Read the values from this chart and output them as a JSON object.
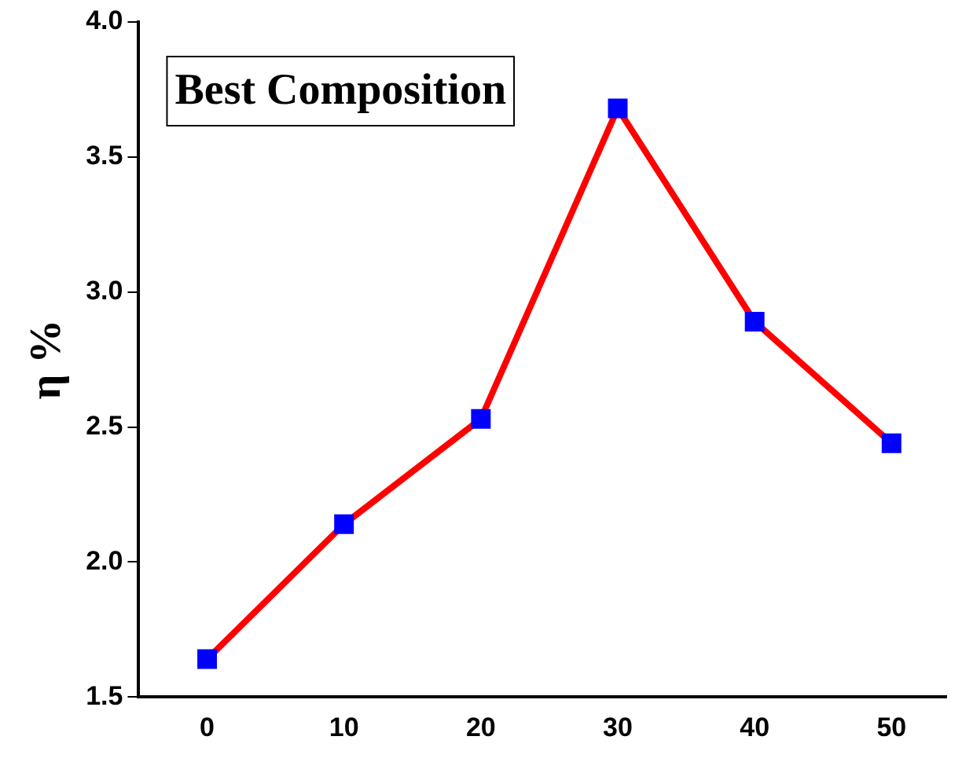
{
  "chart_data": {
    "type": "line",
    "ylabel": "η %",
    "annotations": [
      "Best Composition"
    ],
    "x": [
      0,
      10,
      20,
      30,
      40,
      50
    ],
    "series": [
      {
        "color": "#ff0000",
        "colors": [
          "#0000ff",
          "#0000ff",
          "#0000ff",
          "#0000ff",
          "#0000ff",
          "#0000ff"
        ],
        "values": [
          1.64,
          2.14,
          2.53,
          3.68,
          2.89,
          2.44
        ]
      }
    ],
    "xlim": [
      -5,
      54
    ],
    "xticks": [
      0,
      10,
      20,
      30,
      40,
      50
    ],
    "ylim": [
      1.5,
      4.0
    ],
    "yticks": [
      {
        "value": 1.5,
        "label": "1.5"
      },
      {
        "value": 2.0,
        "label": "2.0"
      },
      {
        "value": 2.5,
        "label": "2.5"
      },
      {
        "value": 3.0,
        "label": "3.0"
      },
      {
        "value": 3.5,
        "label": "3.5"
      },
      {
        "value": 4.0,
        "label": "4.0"
      }
    ],
    "grid": false,
    "legend": false,
    "marker": "square",
    "line_style": "solid"
  }
}
